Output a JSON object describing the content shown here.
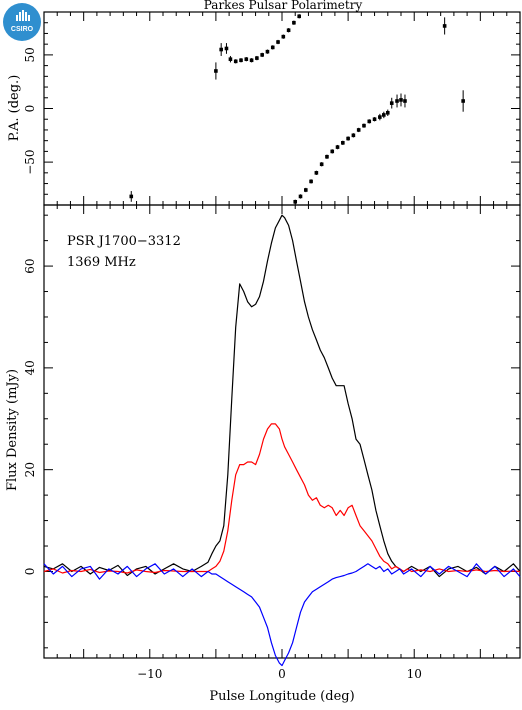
{
  "title": "Parkes Pulsar Polarimetry",
  "logo_text": "CSIRO",
  "colors": {
    "total": "#000000",
    "linear": "#ff0000",
    "circular": "#0000ff",
    "logo": "#2f8fcf"
  },
  "chart_data": [
    {
      "type": "scatter",
      "panel": "top",
      "ylabel": "P.A. (deg.)",
      "xlim": [
        -18,
        18
      ],
      "ylim": [
        -90,
        90
      ],
      "yticks": [
        -50,
        0,
        50
      ],
      "points": [
        {
          "x": -11.4,
          "y": -82,
          "err": 5
        },
        {
          "x": -5.0,
          "y": 35,
          "err": 8
        },
        {
          "x": -4.6,
          "y": 55,
          "err": 6
        },
        {
          "x": -4.2,
          "y": 56,
          "err": 5
        },
        {
          "x": -3.9,
          "y": 46,
          "err": 3
        },
        {
          "x": -3.5,
          "y": 44,
          "err": 2
        },
        {
          "x": -3.1,
          "y": 45,
          "err": 2
        },
        {
          "x": -2.7,
          "y": 46,
          "err": 2
        },
        {
          "x": -2.3,
          "y": 45,
          "err": 2
        },
        {
          "x": -1.9,
          "y": 47,
          "err": 2
        },
        {
          "x": -1.5,
          "y": 50,
          "err": 2
        },
        {
          "x": -1.1,
          "y": 53,
          "err": 2
        },
        {
          "x": -0.7,
          "y": 57,
          "err": 2
        },
        {
          "x": -0.3,
          "y": 62,
          "err": 2
        },
        {
          "x": 0.1,
          "y": 67,
          "err": 2
        },
        {
          "x": 0.5,
          "y": 73,
          "err": 2
        },
        {
          "x": 0.9,
          "y": 80,
          "err": 2
        },
        {
          "x": 1.3,
          "y": 86,
          "err": 2
        },
        {
          "x": 1.0,
          "y": -87,
          "err": 2
        },
        {
          "x": 1.4,
          "y": -82,
          "err": 2
        },
        {
          "x": 1.8,
          "y": -76,
          "err": 2
        },
        {
          "x": 2.2,
          "y": -68,
          "err": 2
        },
        {
          "x": 2.6,
          "y": -60,
          "err": 2
        },
        {
          "x": 3.0,
          "y": -52,
          "err": 2
        },
        {
          "x": 3.4,
          "y": -45,
          "err": 2
        },
        {
          "x": 3.8,
          "y": -40,
          "err": 2
        },
        {
          "x": 4.2,
          "y": -36,
          "err": 2
        },
        {
          "x": 4.6,
          "y": -32,
          "err": 2
        },
        {
          "x": 5.0,
          "y": -28,
          "err": 2
        },
        {
          "x": 5.4,
          "y": -25,
          "err": 2
        },
        {
          "x": 5.8,
          "y": -20,
          "err": 2
        },
        {
          "x": 6.2,
          "y": -16,
          "err": 2
        },
        {
          "x": 6.6,
          "y": -12,
          "err": 2
        },
        {
          "x": 7.0,
          "y": -10,
          "err": 2
        },
        {
          "x": 7.4,
          "y": -8,
          "err": 3
        },
        {
          "x": 7.7,
          "y": -6,
          "err": 3
        },
        {
          "x": 8.0,
          "y": -4,
          "err": 3
        },
        {
          "x": 8.3,
          "y": 5,
          "err": 5
        },
        {
          "x": 8.7,
          "y": 7,
          "err": 6
        },
        {
          "x": 9.0,
          "y": 8,
          "err": 6
        },
        {
          "x": 9.3,
          "y": 7,
          "err": 6
        },
        {
          "x": 12.3,
          "y": 77,
          "err": 8
        },
        {
          "x": 13.7,
          "y": 7,
          "err": 10
        }
      ]
    },
    {
      "type": "line",
      "panel": "bottom",
      "annotations": [
        "PSR J1700−3312",
        "1369 MHz"
      ],
      "xlabel": "Pulse Longitude (deg)",
      "ylabel": "Flux Density (mJy)",
      "xlim": [
        -18,
        18
      ],
      "ylim": [
        -17,
        72
      ],
      "xticks": [
        -10,
        0,
        10
      ],
      "yticks": [
        0,
        20,
        40,
        60
      ],
      "series": [
        {
          "key": "total",
          "x": [
            -18,
            -17.3,
            -16.6,
            -15.9,
            -15.2,
            -14.5,
            -13.8,
            -13.1,
            -12.4,
            -11.7,
            -11,
            -10.3,
            -9.6,
            -8.9,
            -8.2,
            -7.5,
            -6.8,
            -6.1,
            -5.6,
            -5.3,
            -5,
            -4.7,
            -4.4,
            -4.1,
            -3.8,
            -3.5,
            -3.2,
            -2.9,
            -2.6,
            -2.3,
            -2,
            -1.7,
            -1.4,
            -1.1,
            -0.8,
            -0.5,
            -0.2,
            0,
            0.2,
            0.5,
            0.8,
            1.1,
            1.4,
            1.7,
            2,
            2.3,
            2.6,
            2.9,
            3.2,
            3.5,
            3.8,
            4.1,
            4.4,
            4.7,
            5,
            5.3,
            5.6,
            5.9,
            6.2,
            6.5,
            6.8,
            7.1,
            7.4,
            7.7,
            8,
            8.3,
            8.6,
            8.9,
            9.2,
            9.5,
            9.8,
            10.5,
            11.2,
            11.9,
            12.6,
            13.3,
            14,
            14.7,
            15.4,
            16.1,
            16.8,
            17.5,
            18
          ],
          "y": [
            1,
            0.5,
            1.5,
            0,
            1,
            -0.5,
            0.8,
            0.2,
            1.2,
            -0.8,
            0.5,
            1,
            -0.5,
            0.5,
            1.5,
            0.5,
            0,
            1,
            1.8,
            3.5,
            5,
            6,
            9,
            19,
            34,
            48,
            56.5,
            55,
            53,
            52,
            52.5,
            54,
            57,
            61,
            64.5,
            67.5,
            69,
            70,
            69.5,
            68,
            65,
            61,
            57,
            53,
            50,
            47.5,
            45.5,
            43.5,
            42,
            40,
            38,
            36.5,
            36.5,
            36.5,
            33,
            30,
            26,
            25,
            22,
            19,
            16,
            12,
            9,
            6,
            3.5,
            2,
            1,
            0.5,
            0,
            0.5,
            1,
            0,
            1,
            -1,
            0.5,
            1,
            0,
            0.8,
            -0.5,
            1,
            0,
            1.5,
            0
          ]
        },
        {
          "key": "linear",
          "x": [
            -18,
            -17.3,
            -16.6,
            -15.9,
            -15.2,
            -14.5,
            -13.8,
            -13.1,
            -12.4,
            -11.7,
            -11,
            -10.3,
            -9.6,
            -8.9,
            -8.2,
            -7.5,
            -6.8,
            -6.1,
            -5.6,
            -5.3,
            -5,
            -4.7,
            -4.4,
            -4.1,
            -3.8,
            -3.5,
            -3.2,
            -2.9,
            -2.6,
            -2.3,
            -2,
            -1.7,
            -1.4,
            -1.1,
            -0.8,
            -0.5,
            -0.2,
            0,
            0.2,
            0.5,
            0.8,
            1.1,
            1.4,
            1.7,
            2,
            2.3,
            2.6,
            2.9,
            3.2,
            3.5,
            3.8,
            4.1,
            4.4,
            4.7,
            5,
            5.3,
            5.6,
            5.9,
            6.2,
            6.5,
            6.8,
            7.1,
            7.4,
            7.7,
            8,
            8.3,
            8.6,
            8.9,
            9.2,
            9.5,
            9.8,
            10.5,
            11.2,
            11.9,
            12.6,
            13.3,
            14,
            14.7,
            15.4,
            16.1,
            16.8,
            17.5,
            18
          ],
          "y": [
            0,
            0.5,
            -0.3,
            0.2,
            0,
            0.4,
            -0.2,
            0.1,
            0,
            -0.3,
            0.3,
            0,
            -0.2,
            0.2,
            0.1,
            0,
            0,
            0,
            0,
            0.5,
            1,
            2,
            4,
            8,
            14,
            19,
            21,
            21,
            21.5,
            21.5,
            21,
            23,
            26,
            28,
            29,
            29,
            28,
            26,
            24.5,
            23,
            21.5,
            20,
            18.5,
            17,
            15,
            14,
            14.5,
            13,
            12.5,
            13,
            12.5,
            11,
            12,
            11,
            12.5,
            13,
            11,
            9,
            8,
            7,
            6,
            4.5,
            3,
            2,
            1.5,
            0.5,
            1,
            0.5,
            0,
            0.5,
            0,
            0.3,
            0,
            0.5,
            0,
            0.2,
            0,
            0.3,
            0,
            0.2,
            0,
            0.1,
            0
          ]
        },
        {
          "key": "circular",
          "x": [
            -18,
            -17.3,
            -16.6,
            -15.9,
            -15.2,
            -14.5,
            -13.8,
            -13.1,
            -12.4,
            -11.7,
            -11,
            -10.3,
            -9.6,
            -8.9,
            -8.2,
            -7.5,
            -6.8,
            -6.1,
            -5.6,
            -5.3,
            -5,
            -4.7,
            -4.4,
            -4.1,
            -3.8,
            -3.5,
            -3.2,
            -2.9,
            -2.6,
            -2.3,
            -2,
            -1.7,
            -1.4,
            -1.1,
            -0.8,
            -0.5,
            -0.2,
            0,
            0.2,
            0.5,
            0.8,
            1.1,
            1.4,
            1.7,
            2,
            2.3,
            2.6,
            2.9,
            3.2,
            3.5,
            3.8,
            4.1,
            4.4,
            4.7,
            5,
            5.3,
            5.6,
            5.9,
            6.2,
            6.5,
            6.8,
            7.1,
            7.4,
            7.7,
            8,
            8.3,
            8.6,
            8.9,
            9.2,
            9.5,
            9.8,
            10.5,
            11.2,
            11.9,
            12.6,
            13.3,
            14,
            14.7,
            15.4,
            16.1,
            16.8,
            17.5,
            18
          ],
          "y": [
            1.5,
            -0.5,
            1,
            -1,
            0.5,
            1,
            -1.5,
            0.5,
            -0.5,
            1,
            -1,
            0.5,
            1.5,
            -0.5,
            0.5,
            -1,
            0.5,
            -1,
            0,
            -0.5,
            -0.5,
            -1,
            -1.5,
            -2,
            -2.5,
            -3,
            -3.5,
            -4,
            -4.5,
            -5,
            -6,
            -7,
            -9,
            -11,
            -14,
            -16.5,
            -18,
            -18.5,
            -17.5,
            -16,
            -14,
            -11,
            -8,
            -6,
            -5,
            -4,
            -3.5,
            -3,
            -2.5,
            -2,
            -1.5,
            -1.2,
            -1,
            -0.8,
            -0.5,
            -0.3,
            0,
            0.5,
            1,
            1.5,
            1,
            0.5,
            1,
            0,
            0.5,
            -0.5,
            0,
            0.5,
            -0.5,
            0,
            0.5,
            -1,
            1,
            -0.5,
            1,
            0,
            -1,
            1.5,
            -0.5,
            1,
            -1,
            0.5,
            -1
          ]
        }
      ]
    }
  ]
}
